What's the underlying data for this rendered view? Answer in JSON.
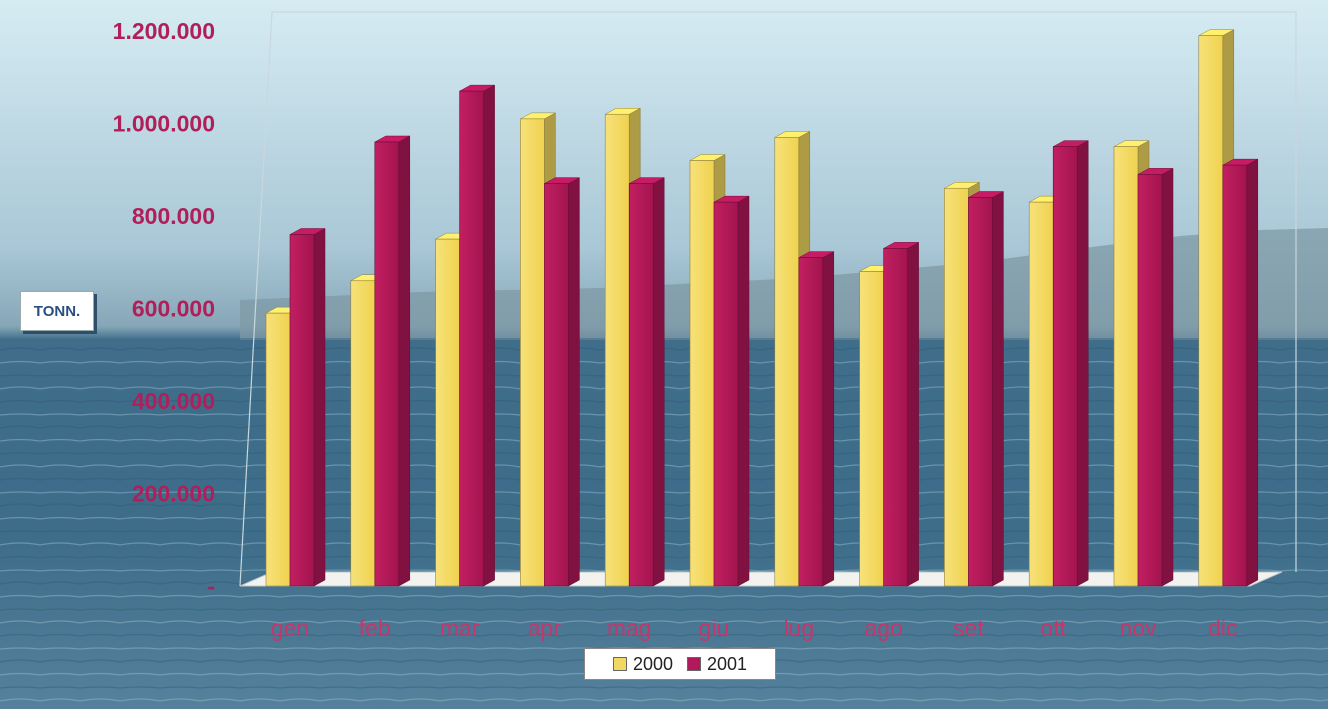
{
  "chart_data": {
    "type": "bar",
    "categories": [
      "gen",
      "feb",
      "mar",
      "apr",
      "mag",
      "giu",
      "lug",
      "ago",
      "set",
      "ott",
      "nov",
      "dic"
    ],
    "series": [
      {
        "name": "2000",
        "color": "#f2d761",
        "values": [
          590000,
          660000,
          750000,
          1010000,
          1020000,
          920000,
          970000,
          680000,
          860000,
          830000,
          950000,
          1190000
        ]
      },
      {
        "name": "2001",
        "color": "#b3185a",
        "values": [
          760000,
          960000,
          1070000,
          870000,
          870000,
          830000,
          710000,
          730000,
          840000,
          950000,
          890000,
          910000
        ]
      }
    ],
    "y_ticks": [
      "1.200.000",
      "1.000.000",
      "800.000",
      "600.000",
      "400.000",
      "200.000",
      "-"
    ],
    "y_tick_values": [
      1200000,
      1000000,
      800000,
      600000,
      400000,
      200000,
      0
    ],
    "ylabel": "TONN.",
    "ylim": [
      0,
      1200000
    ],
    "legend": "bottom-center",
    "grid": false
  },
  "colors": {
    "axis_text": "#b01f5a",
    "label_text": "#c2386d"
  }
}
